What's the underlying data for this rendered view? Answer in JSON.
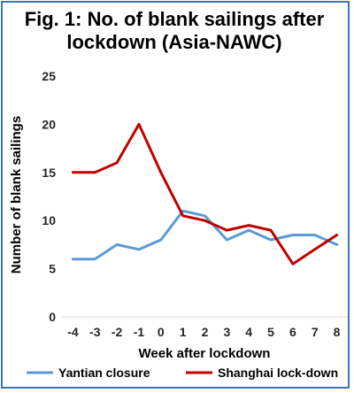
{
  "chart_data": {
    "type": "line",
    "title": "Fig. 1: No. of blank sailings after lockdown (Asia-NAWC)",
    "xlabel": "Week after lockdown",
    "ylabel": "Number of blank sailings",
    "categories": [
      "-4",
      "-3",
      "-2",
      "-1",
      "0",
      "1",
      "2",
      "3",
      "4",
      "5",
      "6",
      "7",
      "8"
    ],
    "ylim": [
      0,
      25
    ],
    "yticks": [
      0,
      5,
      10,
      15,
      20,
      25
    ],
    "grid": false,
    "legend": "bottom",
    "series": [
      {
        "name": "Yantian closure",
        "color": "#5b9bd5",
        "values": [
          6,
          6,
          7.5,
          7,
          8,
          11,
          10.5,
          8,
          9,
          8,
          8.5,
          8.5,
          7.5
        ]
      },
      {
        "name": "Shanghai lock-down",
        "color": "#c00000",
        "values": [
          15,
          15,
          16,
          20,
          15,
          10.5,
          10,
          9,
          9.5,
          9,
          5.5,
          7,
          8.5
        ]
      }
    ]
  }
}
